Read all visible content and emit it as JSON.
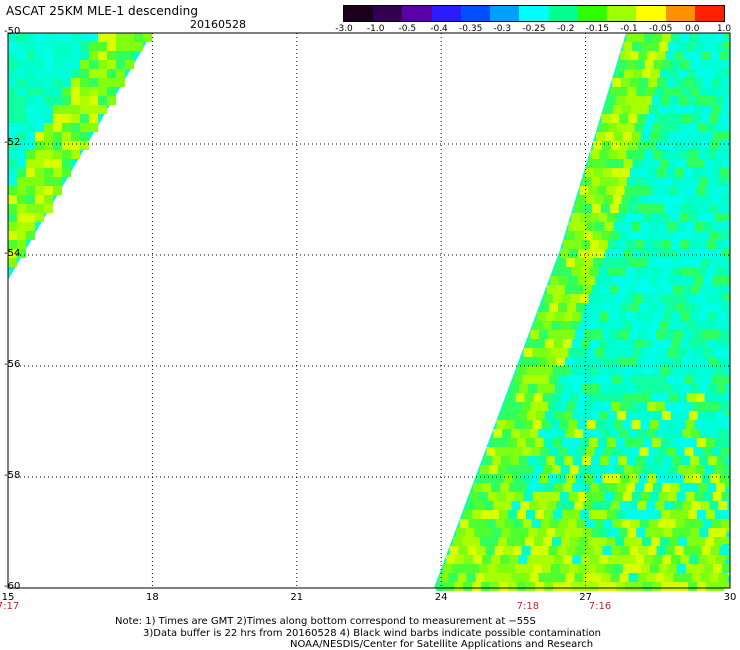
{
  "header": {
    "title": "ASCAT 25KM MLE-1 descending",
    "date": "20160528"
  },
  "colorbar": {
    "labels": [
      "-3.0",
      "-1.0",
      "-0.5",
      "-0.4",
      "-0.35",
      "-0.3",
      "-0.25",
      "-0.2",
      "-0.15",
      "-0.1",
      "-0.05",
      "0.0",
      "1.0"
    ],
    "colors": [
      "#1a0018",
      "#33004d",
      "#5a00a8",
      "#2a1cff",
      "#0050ff",
      "#00a0ff",
      "#00ffff",
      "#00ff90",
      "#30ff00",
      "#a0ff00",
      "#ffff00",
      "#ff9000",
      "#ff2000"
    ]
  },
  "axes": {
    "y_ticks": [
      "-50",
      "-52",
      "-54",
      "-56",
      "-58",
      "-60"
    ],
    "x_ticks": [
      "15",
      "18",
      "21",
      "24",
      "27",
      "30"
    ],
    "time_marks": [
      {
        "lon": 15,
        "text": "7:17"
      },
      {
        "lon": 25.8,
        "text": "7:18"
      },
      {
        "lon": 27.3,
        "text": "7:16"
      }
    ]
  },
  "notes": {
    "line1": "Note: 1) Times are GMT 2)Times along bottom correspond to measurement at −55S",
    "line2": "3)Data buffer is 22 hrs from 20160528 4) Black wind barbs indicate possible contamination",
    "line3": "NOAA/NESDIS/Center for Satellite Applications and Research"
  }
}
